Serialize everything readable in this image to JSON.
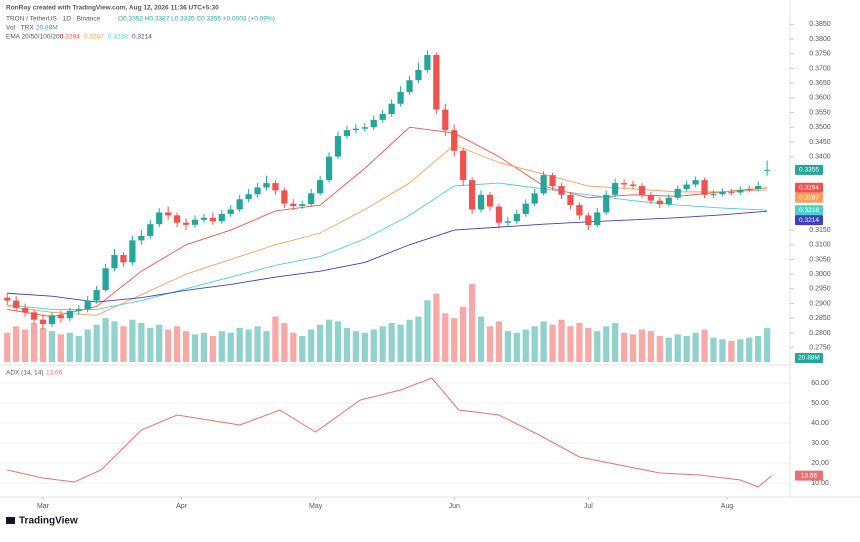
{
  "chart_data": {
    "type": "candlestick",
    "credit": "RonRoy created with TradingView.com, Aug 12, 2026 11:36 UTC+5:30",
    "symbol": "TRON / TetherUS · 1D · Binance",
    "ohlc_text": "O0.3352 H0.3387 L0.3335 C0.3355 +0.0003 (+0.09%)",
    "volume_legend": "Vol · TRX",
    "volume_label": "20.88M",
    "ema_legend": "EMA 20/50/100/200",
    "logo": "TradingView",
    "up_color": "#26a69a",
    "down_color": "#ef5350",
    "xlim": [
      -8.5,
      166
    ],
    "xticks": [
      {
        "value": 0,
        "label": "Mar"
      },
      {
        "value": 31,
        "label": "Apr"
      },
      {
        "value": 61,
        "label": "May"
      },
      {
        "value": 92,
        "label": "Jun"
      },
      {
        "value": 122,
        "label": "Jul"
      },
      {
        "value": 153,
        "label": "Aug"
      }
    ],
    "ylim": [
      0.2701,
      0.3899
    ],
    "yticks": [
      {
        "value": 0.385,
        "label": "0.3850"
      },
      {
        "value": 0.38,
        "label": "0.3800"
      },
      {
        "value": 0.375,
        "label": "0.3750"
      },
      {
        "value": 0.37,
        "label": "0.3700"
      },
      {
        "value": 0.365,
        "label": "0.3650"
      },
      {
        "value": 0.36,
        "label": "0.3600"
      },
      {
        "value": 0.355,
        "label": "0.3550"
      },
      {
        "value": 0.35,
        "label": "0.3500"
      },
      {
        "value": 0.345,
        "label": "0.3450"
      },
      {
        "value": 0.34,
        "label": "0.3400"
      },
      {
        "value": 0.315,
        "label": "0.3150"
      },
      {
        "value": 0.31,
        "label": "0.3100"
      },
      {
        "value": 0.305,
        "label": "0.3050"
      },
      {
        "value": 0.3,
        "label": "0.3000"
      },
      {
        "value": 0.295,
        "label": "0.2950"
      },
      {
        "value": 0.29,
        "label": "0.2900"
      },
      {
        "value": 0.285,
        "label": "0.2850"
      },
      {
        "value": 0.28,
        "label": "0.2800"
      },
      {
        "value": 0.275,
        "label": "0.2750"
      }
    ],
    "candles": [
      {
        "x": -8,
        "o": 0.292,
        "h": 0.2935,
        "l": 0.2895,
        "c": 0.291,
        "v": 18
      },
      {
        "x": -6,
        "o": 0.291,
        "h": 0.2925,
        "l": 0.2875,
        "c": 0.2885,
        "v": 22
      },
      {
        "x": -4,
        "o": 0.2885,
        "h": 0.29,
        "l": 0.2855,
        "c": 0.287,
        "v": 20
      },
      {
        "x": -2,
        "o": 0.287,
        "h": 0.288,
        "l": 0.283,
        "c": 0.2845,
        "v": 24
      },
      {
        "x": 0,
        "o": 0.2845,
        "h": 0.286,
        "l": 0.2812,
        "c": 0.283,
        "v": 21
      },
      {
        "x": 2,
        "o": 0.283,
        "h": 0.287,
        "l": 0.282,
        "c": 0.286,
        "v": 19
      },
      {
        "x": 4,
        "o": 0.286,
        "h": 0.2875,
        "l": 0.2835,
        "c": 0.285,
        "v": 17
      },
      {
        "x": 6,
        "o": 0.285,
        "h": 0.2885,
        "l": 0.284,
        "c": 0.2875,
        "v": 18
      },
      {
        "x": 8,
        "o": 0.2875,
        "h": 0.2895,
        "l": 0.2862,
        "c": 0.288,
        "v": 16
      },
      {
        "x": 10,
        "o": 0.288,
        "h": 0.2925,
        "l": 0.287,
        "c": 0.291,
        "v": 20
      },
      {
        "x": 12,
        "o": 0.291,
        "h": 0.296,
        "l": 0.29,
        "c": 0.2946,
        "v": 23
      },
      {
        "x": 14,
        "o": 0.2946,
        "h": 0.3035,
        "l": 0.294,
        "c": 0.302,
        "v": 27
      },
      {
        "x": 16,
        "o": 0.302,
        "h": 0.3085,
        "l": 0.301,
        "c": 0.3065,
        "v": 25
      },
      {
        "x": 18,
        "o": 0.3065,
        "h": 0.3075,
        "l": 0.3025,
        "c": 0.304,
        "v": 22
      },
      {
        "x": 20,
        "o": 0.304,
        "h": 0.313,
        "l": 0.303,
        "c": 0.3115,
        "v": 26
      },
      {
        "x": 22,
        "o": 0.3115,
        "h": 0.315,
        "l": 0.31,
        "c": 0.313,
        "v": 24
      },
      {
        "x": 24,
        "o": 0.313,
        "h": 0.3185,
        "l": 0.312,
        "c": 0.317,
        "v": 21
      },
      {
        "x": 26,
        "o": 0.317,
        "h": 0.3225,
        "l": 0.316,
        "c": 0.321,
        "v": 23
      },
      {
        "x": 28,
        "o": 0.321,
        "h": 0.323,
        "l": 0.3185,
        "c": 0.32,
        "v": 20
      },
      {
        "x": 30,
        "o": 0.32,
        "h": 0.321,
        "l": 0.316,
        "c": 0.3175,
        "v": 22
      },
      {
        "x": 32,
        "o": 0.3175,
        "h": 0.319,
        "l": 0.315,
        "c": 0.3168,
        "v": 19
      },
      {
        "x": 34,
        "o": 0.3168,
        "h": 0.32,
        "l": 0.3158,
        "c": 0.3185,
        "v": 17
      },
      {
        "x": 36,
        "o": 0.3185,
        "h": 0.3205,
        "l": 0.3175,
        "c": 0.3192,
        "v": 18
      },
      {
        "x": 38,
        "o": 0.3192,
        "h": 0.321,
        "l": 0.3168,
        "c": 0.318,
        "v": 16
      },
      {
        "x": 40,
        "o": 0.318,
        "h": 0.3218,
        "l": 0.3172,
        "c": 0.3205,
        "v": 19
      },
      {
        "x": 42,
        "o": 0.3205,
        "h": 0.3235,
        "l": 0.3195,
        "c": 0.322,
        "v": 18
      },
      {
        "x": 44,
        "o": 0.322,
        "h": 0.327,
        "l": 0.3212,
        "c": 0.3255,
        "v": 21
      },
      {
        "x": 46,
        "o": 0.3255,
        "h": 0.329,
        "l": 0.3245,
        "c": 0.3272,
        "v": 20
      },
      {
        "x": 48,
        "o": 0.3272,
        "h": 0.331,
        "l": 0.3262,
        "c": 0.3295,
        "v": 22
      },
      {
        "x": 50,
        "o": 0.3295,
        "h": 0.3335,
        "l": 0.3285,
        "c": 0.331,
        "v": 19
      },
      {
        "x": 52,
        "o": 0.331,
        "h": 0.332,
        "l": 0.327,
        "c": 0.3285,
        "v": 28
      },
      {
        "x": 54,
        "o": 0.3285,
        "h": 0.3295,
        "l": 0.3225,
        "c": 0.324,
        "v": 24
      },
      {
        "x": 56,
        "o": 0.324,
        "h": 0.3255,
        "l": 0.3218,
        "c": 0.3232,
        "v": 18
      },
      {
        "x": 58,
        "o": 0.3232,
        "h": 0.325,
        "l": 0.3222,
        "c": 0.3238,
        "v": 16
      },
      {
        "x": 60,
        "o": 0.3238,
        "h": 0.329,
        "l": 0.323,
        "c": 0.3275,
        "v": 20
      },
      {
        "x": 62,
        "o": 0.3275,
        "h": 0.3335,
        "l": 0.3268,
        "c": 0.332,
        "v": 23
      },
      {
        "x": 64,
        "o": 0.332,
        "h": 0.3415,
        "l": 0.3312,
        "c": 0.34,
        "v": 26
      },
      {
        "x": 66,
        "o": 0.34,
        "h": 0.3485,
        "l": 0.3392,
        "c": 0.347,
        "v": 25
      },
      {
        "x": 68,
        "o": 0.347,
        "h": 0.3505,
        "l": 0.346,
        "c": 0.349,
        "v": 21
      },
      {
        "x": 70,
        "o": 0.349,
        "h": 0.351,
        "l": 0.348,
        "c": 0.3495,
        "v": 19
      },
      {
        "x": 72,
        "o": 0.3495,
        "h": 0.3515,
        "l": 0.3485,
        "c": 0.35,
        "v": 18
      },
      {
        "x": 74,
        "o": 0.35,
        "h": 0.354,
        "l": 0.349,
        "c": 0.3525,
        "v": 20
      },
      {
        "x": 76,
        "o": 0.3525,
        "h": 0.356,
        "l": 0.3515,
        "c": 0.3545,
        "v": 22
      },
      {
        "x": 78,
        "o": 0.3545,
        "h": 0.3595,
        "l": 0.3535,
        "c": 0.358,
        "v": 24
      },
      {
        "x": 80,
        "o": 0.358,
        "h": 0.364,
        "l": 0.357,
        "c": 0.362,
        "v": 23
      },
      {
        "x": 82,
        "o": 0.362,
        "h": 0.3675,
        "l": 0.361,
        "c": 0.366,
        "v": 26
      },
      {
        "x": 84,
        "o": 0.366,
        "h": 0.372,
        "l": 0.365,
        "c": 0.3695,
        "v": 28
      },
      {
        "x": 86,
        "o": 0.3695,
        "h": 0.3762,
        "l": 0.3685,
        "c": 0.3746,
        "v": 38
      },
      {
        "x": 88,
        "o": 0.3746,
        "h": 0.3755,
        "l": 0.3545,
        "c": 0.356,
        "v": 42
      },
      {
        "x": 90,
        "o": 0.356,
        "h": 0.358,
        "l": 0.347,
        "c": 0.349,
        "v": 30
      },
      {
        "x": 92,
        "o": 0.349,
        "h": 0.351,
        "l": 0.34,
        "c": 0.342,
        "v": 27
      },
      {
        "x": 94,
        "o": 0.342,
        "h": 0.343,
        "l": 0.33,
        "c": 0.332,
        "v": 34
      },
      {
        "x": 96,
        "o": 0.332,
        "h": 0.333,
        "l": 0.3205,
        "c": 0.322,
        "v": 48
      },
      {
        "x": 98,
        "o": 0.322,
        "h": 0.3285,
        "l": 0.321,
        "c": 0.327,
        "v": 28
      },
      {
        "x": 100,
        "o": 0.327,
        "h": 0.328,
        "l": 0.3215,
        "c": 0.323,
        "v": 22
      },
      {
        "x": 102,
        "o": 0.323,
        "h": 0.324,
        "l": 0.3155,
        "c": 0.3175,
        "v": 25
      },
      {
        "x": 104,
        "o": 0.3175,
        "h": 0.3195,
        "l": 0.316,
        "c": 0.318,
        "v": 19
      },
      {
        "x": 106,
        "o": 0.318,
        "h": 0.322,
        "l": 0.317,
        "c": 0.3205,
        "v": 18
      },
      {
        "x": 108,
        "o": 0.3205,
        "h": 0.3255,
        "l": 0.3195,
        "c": 0.324,
        "v": 20
      },
      {
        "x": 110,
        "o": 0.324,
        "h": 0.329,
        "l": 0.3232,
        "c": 0.3275,
        "v": 22
      },
      {
        "x": 112,
        "o": 0.3275,
        "h": 0.335,
        "l": 0.3268,
        "c": 0.3337,
        "v": 25
      },
      {
        "x": 114,
        "o": 0.3337,
        "h": 0.3345,
        "l": 0.3285,
        "c": 0.33,
        "v": 23
      },
      {
        "x": 116,
        "o": 0.33,
        "h": 0.331,
        "l": 0.3255,
        "c": 0.327,
        "v": 26
      },
      {
        "x": 118,
        "o": 0.327,
        "h": 0.328,
        "l": 0.322,
        "c": 0.3235,
        "v": 22
      },
      {
        "x": 120,
        "o": 0.3235,
        "h": 0.3245,
        "l": 0.3185,
        "c": 0.32,
        "v": 24
      },
      {
        "x": 122,
        "o": 0.32,
        "h": 0.321,
        "l": 0.315,
        "c": 0.3167,
        "v": 21
      },
      {
        "x": 124,
        "o": 0.3167,
        "h": 0.3225,
        "l": 0.316,
        "c": 0.321,
        "v": 19
      },
      {
        "x": 126,
        "o": 0.321,
        "h": 0.3285,
        "l": 0.3202,
        "c": 0.327,
        "v": 22
      },
      {
        "x": 128,
        "o": 0.327,
        "h": 0.3325,
        "l": 0.3262,
        "c": 0.331,
        "v": 24
      },
      {
        "x": 130,
        "o": 0.331,
        "h": 0.3322,
        "l": 0.3292,
        "c": 0.3305,
        "v": 18
      },
      {
        "x": 132,
        "o": 0.3305,
        "h": 0.3318,
        "l": 0.3288,
        "c": 0.33,
        "v": 17
      },
      {
        "x": 134,
        "o": 0.33,
        "h": 0.331,
        "l": 0.3258,
        "c": 0.327,
        "v": 20
      },
      {
        "x": 136,
        "o": 0.327,
        "h": 0.328,
        "l": 0.3238,
        "c": 0.325,
        "v": 19
      },
      {
        "x": 138,
        "o": 0.325,
        "h": 0.3262,
        "l": 0.3225,
        "c": 0.3238,
        "v": 16
      },
      {
        "x": 140,
        "o": 0.3238,
        "h": 0.3272,
        "l": 0.323,
        "c": 0.326,
        "v": 15
      },
      {
        "x": 142,
        "o": 0.326,
        "h": 0.3302,
        "l": 0.3252,
        "c": 0.329,
        "v": 17
      },
      {
        "x": 144,
        "o": 0.329,
        "h": 0.3318,
        "l": 0.3282,
        "c": 0.3305,
        "v": 16
      },
      {
        "x": 146,
        "o": 0.3305,
        "h": 0.3332,
        "l": 0.3295,
        "c": 0.332,
        "v": 18
      },
      {
        "x": 148,
        "o": 0.332,
        "h": 0.3328,
        "l": 0.3258,
        "c": 0.327,
        "v": 20
      },
      {
        "x": 150,
        "o": 0.327,
        "h": 0.3285,
        "l": 0.326,
        "c": 0.3272,
        "v": 15
      },
      {
        "x": 152,
        "o": 0.3272,
        "h": 0.3292,
        "l": 0.3265,
        "c": 0.328,
        "v": 14
      },
      {
        "x": 154,
        "o": 0.328,
        "h": 0.329,
        "l": 0.3268,
        "c": 0.3278,
        "v": 13
      },
      {
        "x": 156,
        "o": 0.3278,
        "h": 0.3298,
        "l": 0.327,
        "c": 0.3286,
        "v": 14
      },
      {
        "x": 158,
        "o": 0.3286,
        "h": 0.3302,
        "l": 0.3278,
        "c": 0.329,
        "v": 15
      },
      {
        "x": 160,
        "o": 0.329,
        "h": 0.3315,
        "l": 0.3282,
        "c": 0.33,
        "v": 16
      },
      {
        "x": 162,
        "o": 0.3352,
        "h": 0.3387,
        "l": 0.3335,
        "c": 0.3355,
        "v": 20.88
      }
    ],
    "ema_x": [
      -8,
      2,
      12,
      22,
      32,
      42,
      52,
      62,
      72,
      82,
      92,
      102,
      112,
      122,
      132,
      142,
      152,
      162
    ],
    "series": [
      {
        "name": "EMA 20",
        "color": "#ef5350",
        "values": [
          0.288,
          0.2855,
          0.289,
          0.301,
          0.31,
          0.315,
          0.3215,
          0.3235,
          0.336,
          0.35,
          0.348,
          0.34,
          0.33,
          0.326,
          0.327,
          0.3265,
          0.328,
          0.3294
        ]
      },
      {
        "name": "EMA 50",
        "color": "#f5a05a",
        "values": [
          0.289,
          0.287,
          0.286,
          0.293,
          0.3,
          0.305,
          0.31,
          0.314,
          0.322,
          0.331,
          0.344,
          0.338,
          0.334,
          0.33,
          0.329,
          0.328,
          0.328,
          0.3287
        ]
      },
      {
        "name": "EMA 100",
        "color": "#4dd0c8",
        "values": [
          0.2895,
          0.288,
          0.288,
          0.291,
          0.295,
          0.299,
          0.303,
          0.306,
          0.312,
          0.32,
          0.33,
          0.331,
          0.329,
          0.327,
          0.325,
          0.3235,
          0.3225,
          0.3218
        ]
      },
      {
        "name": "EMA 200",
        "color": "#3f3fbf",
        "values": [
          0.2935,
          0.2925,
          0.2905,
          0.292,
          0.2945,
          0.2965,
          0.299,
          0.301,
          0.304,
          0.31,
          0.315,
          0.316,
          0.317,
          0.3178,
          0.3185,
          0.3192,
          0.3202,
          0.3214
        ]
      }
    ],
    "adx": {
      "name": "ADX (14, 14)",
      "color": "#e57373",
      "x": [
        -8,
        0,
        7,
        13,
        22,
        30,
        37,
        44,
        53,
        61,
        71,
        80,
        87,
        93,
        102,
        111,
        120,
        129,
        138,
        147,
        156,
        160,
        163
      ],
      "values": [
        16.5,
        12.5,
        10.5,
        16.5,
        36.5,
        44,
        41.5,
        39,
        46.5,
        35.5,
        51.5,
        56.5,
        62.5,
        46.5,
        44,
        34,
        23,
        19,
        15,
        14,
        11.5,
        8,
        13.66
      ],
      "ylim": [
        4,
        66.5
      ],
      "yticks": [
        {
          "value": 60,
          "label": "60.00"
        },
        {
          "value": 50,
          "label": "50.00"
        },
        {
          "value": 40,
          "label": "40.00"
        },
        {
          "value": 30,
          "label": "30.00"
        },
        {
          "value": 20,
          "label": "20.00"
        },
        {
          "value": 10,
          "label": "10.00"
        }
      ]
    }
  }
}
